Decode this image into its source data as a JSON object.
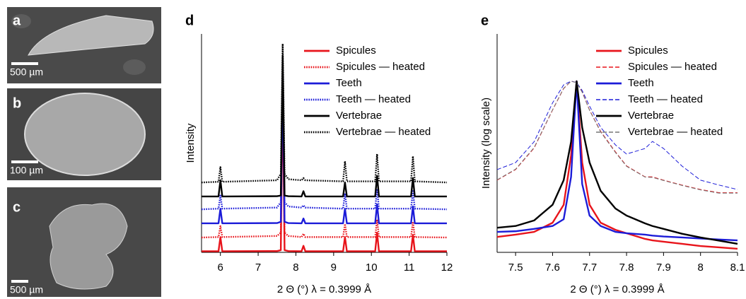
{
  "images": [
    {
      "label": "a",
      "scale_bar": "500 µm"
    },
    {
      "label": "b",
      "scale_bar": "100 µm"
    },
    {
      "label": "c",
      "scale_bar": "500 µm"
    }
  ],
  "chart_data": [
    {
      "type": "line",
      "panel_label": "d",
      "x_label": "2 Θ (°) λ = 0.3999 Å",
      "y_label": "Intensity",
      "legend": "upper right",
      "log_scale": false,
      "xlim": [
        5.5,
        12
      ],
      "xticks": [
        6,
        7,
        8,
        9,
        10,
        11,
        12
      ],
      "ylim": [
        0,
        100
      ],
      "x": [
        5.5,
        5.95,
        6.0,
        6.05,
        7.5,
        7.6,
        7.65,
        7.7,
        7.8,
        8.15,
        8.2,
        8.25,
        9.25,
        9.3,
        9.35,
        10.1,
        10.15,
        10.2,
        11.05,
        11.1,
        11.15,
        12
      ],
      "series": [
        {
          "name": "Spicules",
          "color": "#e8141b",
          "dash": "solid",
          "values": [
            0.5,
            0.5,
            7,
            0.5,
            0.6,
            1,
            75,
            1,
            0.6,
            0.5,
            3,
            0.5,
            0.5,
            7,
            0.5,
            0.5,
            9,
            0.5,
            0.5,
            8,
            0.5,
            0.5
          ]
        },
        {
          "name": "Spicules — heated",
          "color": "#e8141b",
          "dash": "dotted",
          "values": [
            6.8,
            7,
            12,
            7,
            7.5,
            9,
            80,
            9,
            7.5,
            7,
            8.5,
            7,
            7,
            13,
            7,
            7,
            15,
            7,
            7,
            14,
            7,
            6.8
          ]
        },
        {
          "name": "Teeth",
          "color": "#1c1cd8",
          "dash": "solid",
          "values": [
            13.3,
            13.3,
            20,
            13.3,
            13.4,
            14,
            82,
            14,
            13.4,
            13.3,
            15.5,
            13.3,
            13.3,
            20,
            13.3,
            13.3,
            22,
            13.3,
            13.3,
            21,
            13.3,
            13.3
          ]
        },
        {
          "name": "Teeth — heated",
          "color": "#1c1cd8",
          "dash": "dotted",
          "values": [
            19.7,
            20,
            26,
            20,
            20.5,
            23,
            85,
            23,
            21,
            20.5,
            21.5,
            20.5,
            20,
            27,
            20,
            20,
            29,
            20,
            20,
            28,
            20,
            19.7
          ]
        },
        {
          "name": "Vertebrae",
          "color": "#000000",
          "dash": "solid",
          "values": [
            25.6,
            25.6,
            33,
            25.6,
            25.7,
            26,
            90,
            26,
            25.7,
            25.6,
            28,
            25.6,
            25.6,
            32,
            25.6,
            25.6,
            35,
            25.6,
            25.6,
            34,
            25.6,
            25.6
          ]
        },
        {
          "name": "Vertebrae — heated",
          "color": "#000000",
          "dash": "dotted",
          "values": [
            32,
            32.3,
            39,
            32.3,
            33,
            36,
            95.5,
            36,
            33.5,
            33,
            34,
            33,
            32.5,
            41.7,
            32.5,
            32.5,
            45,
            32.5,
            32.5,
            44,
            32.5,
            32
          ]
        }
      ]
    },
    {
      "type": "line",
      "panel_label": "e",
      "x_label": "2 Θ (°) λ = 0.3999 Å",
      "y_label": "Intensity (log scale)",
      "legend": "upper right",
      "log_scale": true,
      "xlim": [
        7.45,
        8.1
      ],
      "xticks": [
        7.5,
        7.6,
        7.7,
        7.8,
        7.9,
        8,
        8.1
      ],
      "ylim": [
        1,
        1000
      ],
      "x": [
        7.45,
        7.5,
        7.55,
        7.6,
        7.63,
        7.65,
        7.665,
        7.68,
        7.7,
        7.73,
        7.77,
        7.8,
        7.85,
        7.87,
        7.9,
        7.95,
        8.0,
        8.05,
        8.1
      ],
      "series": [
        {
          "name": "Spicules",
          "color": "#e8141b",
          "dash": "solid",
          "values": [
            1.63,
            1.75,
            1.91,
            2.55,
            4.5,
            21.4,
            224,
            17.1,
            4.5,
            2.55,
            2.04,
            1.83,
            1.53,
            1.46,
            1.4,
            1.31,
            1.22,
            1.17,
            1.12
          ]
        },
        {
          "name": "Spicules — heated",
          "color": "#e8141b",
          "dash": "dashed",
          "values": [
            9.8,
            13.7,
            27,
            90,
            178,
            224,
            215,
            160,
            90,
            46,
            24,
            15.4,
            10.9,
            10.9,
            9.8,
            8.4,
            7.3,
            6.6,
            6.6
          ]
        },
        {
          "name": "Teeth",
          "color": "#1c1cd8",
          "dash": "solid",
          "values": [
            1.91,
            1.95,
            2.1,
            2.3,
            2.85,
            10.9,
            224,
            8.7,
            3.2,
            2.3,
            1.91,
            1.83,
            1.75,
            1.7,
            1.65,
            1.6,
            1.55,
            1.5,
            1.46
          ]
        },
        {
          "name": "Teeth — heated",
          "color": "#1c1cd8",
          "dash": "dashed",
          "values": [
            13.7,
            17.1,
            33,
            113,
            200,
            224,
            215,
            167,
            102,
            52,
            29.9,
            22.4,
            26.7,
            33.4,
            26.7,
            15.3,
            9.8,
            8.4,
            7.3
          ]
        },
        {
          "name": "Vertebrae",
          "color": "#000000",
          "dash": "solid",
          "values": [
            2.18,
            2.3,
            2.74,
            4.5,
            9.8,
            33,
            224,
            52,
            17.1,
            7,
            4,
            3.2,
            2.5,
            2.3,
            2.1,
            1.8,
            1.6,
            1.45,
            1.31
          ]
        },
        {
          "name": "Vertebrae — heated",
          "color": "#777777",
          "dash": "dashed",
          "values": [
            9.9,
            13.9,
            27.5,
            91,
            180,
            224,
            214,
            158,
            89,
            45,
            23.5,
            15.2,
            10.8,
            10.7,
            9.7,
            8.3,
            7.2,
            6.5,
            6.5
          ]
        }
      ]
    }
  ]
}
